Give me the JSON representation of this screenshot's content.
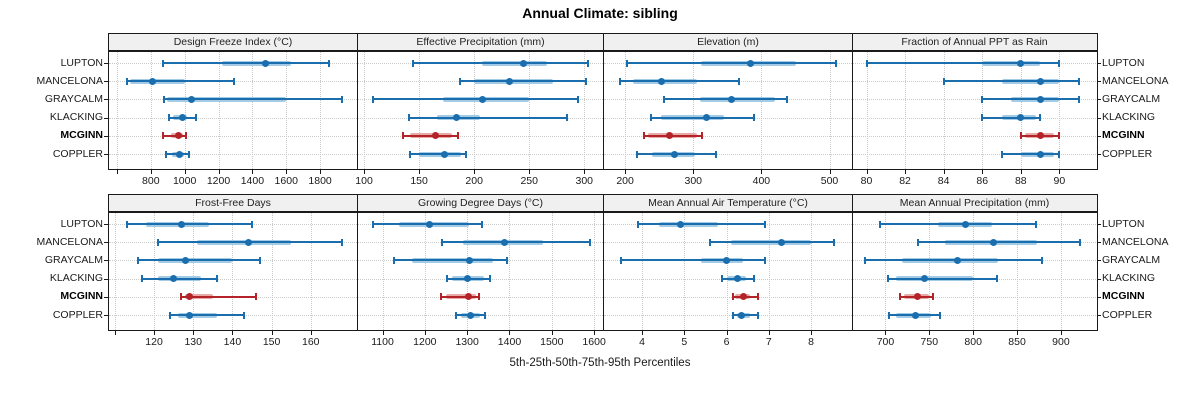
{
  "title": "Annual Climate: sibling",
  "xlabel": "5th-25th-50th-75th-95th Percentiles",
  "sites": [
    "LUPTON",
    "MANCELONA",
    "GRAYCALM",
    "KLACKING",
    "MCGINN",
    "COPPLER"
  ],
  "highlight_site": "MCGINN",
  "colors": {
    "series_blue": "#1b6eae",
    "series_blue_light": "#a3cbe5",
    "highlight_red": "#b32327",
    "highlight_red_light": "#e6aaa8",
    "grid": "#c9c9c9",
    "panel_border": "#1a1a1a",
    "header_bg": "#f0f0f0"
  },
  "chart_data": {
    "type": "scatter",
    "subtype": "percentile-dotplot-trellis",
    "percentile_labels": [
      "5th",
      "25th",
      "50th",
      "75th",
      "95th"
    ],
    "title": "Annual Climate: sibling",
    "xlabel": "5th-25th-50th-75th-95th Percentiles",
    "categories": [
      "LUPTON",
      "MANCELONA",
      "GRAYCALM",
      "KLACKING",
      "MCGINN",
      "COPPLER"
    ],
    "panels": [
      {
        "title": "Design Freeze Index (°C)",
        "row": 0,
        "col": 0,
        "xlim": [
          553,
          2018
        ],
        "ticks": [
          600,
          800,
          1000,
          1200,
          1400,
          1600,
          1800
        ],
        "tick_labels": [
          "",
          "800",
          "1000",
          "1200",
          "1400",
          "1600",
          "1800"
        ],
        "values": {
          "LUPTON": [
            870,
            1220,
            1480,
            1630,
            1850
          ],
          "MANCELONA": [
            660,
            680,
            810,
            1000,
            1290
          ],
          "GRAYCALM": [
            875,
            895,
            1040,
            1600,
            1930
          ],
          "KLACKING": [
            905,
            930,
            985,
            1015,
            1065
          ],
          "MCGINN": [
            870,
            918,
            962,
            988,
            1008
          ],
          "COPPLER": [
            890,
            925,
            970,
            995,
            1025
          ]
        }
      },
      {
        "title": "Effective Precipitation (mm)",
        "row": 0,
        "col": 1,
        "xlim": [
          94.5,
          317
        ],
        "ticks": [
          100,
          150,
          200,
          250,
          300
        ],
        "tick_labels": [
          "100",
          "150",
          "200",
          "250",
          "300"
        ],
        "values": {
          "LUPTON": [
            144,
            207,
            245,
            266,
            303
          ],
          "MANCELONA": [
            187,
            200,
            232,
            272,
            302
          ],
          "GRAYCALM": [
            108,
            172,
            208,
            250,
            294
          ],
          "KLACKING": [
            141,
            166,
            184,
            205,
            284
          ],
          "MCGINN": [
            135,
            142,
            165,
            180,
            185
          ],
          "COPPLER": [
            142,
            150,
            173,
            188,
            193
          ]
        }
      },
      {
        "title": "Elevation (m)",
        "row": 0,
        "col": 2,
        "xlim": [
          169,
          533
        ],
        "ticks": [
          200,
          300,
          400,
          500
        ],
        "tick_labels": [
          "200",
          "300",
          "400",
          "500"
        ],
        "values": {
          "LUPTON": [
            203,
            311,
            384,
            451,
            510
          ],
          "MANCELONA": [
            193,
            212,
            253,
            306,
            367
          ],
          "GRAYCALM": [
            257,
            310,
            356,
            420,
            437
          ],
          "KLACKING": [
            238,
            252,
            320,
            345,
            389
          ],
          "MCGINN": [
            228,
            234,
            265,
            305,
            313
          ],
          "COPPLER": [
            218,
            240,
            273,
            303,
            333
          ]
        }
      },
      {
        "title": "Fraction of Annual PPT as Rain",
        "row": 0,
        "col": 3,
        "xlim": [
          79.3,
          91.9
        ],
        "ticks": [
          80,
          82,
          84,
          86,
          88,
          90
        ],
        "tick_labels": [
          "80",
          "82",
          "84",
          "86",
          "88",
          "90"
        ],
        "values": {
          "LUPTON": [
            80,
            86,
            88,
            89,
            90
          ],
          "MANCELONA": [
            84,
            87,
            89,
            90,
            91
          ],
          "GRAYCALM": [
            86,
            87.5,
            89,
            90,
            91
          ],
          "KLACKING": [
            86,
            87,
            88,
            88.8,
            89
          ],
          "MCGINN": [
            88,
            88.2,
            89,
            89.7,
            90
          ],
          "COPPLER": [
            87,
            88,
            89,
            89.7,
            90
          ]
        }
      },
      {
        "title": "Frost-Free Days",
        "row": 1,
        "col": 0,
        "xlim": [
          108.5,
          171.8
        ],
        "ticks": [
          110,
          120,
          130,
          140,
          150,
          160
        ],
        "tick_labels": [
          "",
          "120",
          "130",
          "140",
          "150",
          "160"
        ],
        "values": {
          "LUPTON": [
            113,
            118,
            127,
            134,
            145
          ],
          "MANCELONA": [
            121,
            131,
            144,
            155,
            168
          ],
          "GRAYCALM": [
            116,
            121,
            128,
            140,
            147
          ],
          "KLACKING": [
            117,
            121,
            125,
            132,
            136
          ],
          "MCGINN": [
            127,
            128,
            129,
            135,
            146
          ],
          "COPPLER": [
            124,
            126,
            129,
            136,
            143
          ]
        }
      },
      {
        "title": "Growing Degree Days (°C)",
        "row": 1,
        "col": 1,
        "xlim": [
          1042,
          1621
        ],
        "ticks": [
          1100,
          1200,
          1300,
          1400,
          1500,
          1600
        ],
        "tick_labels": [
          "1100",
          "1200",
          "1300",
          "1400",
          "1500",
          "1600"
        ],
        "values": {
          "LUPTON": [
            1078,
            1140,
            1210,
            1305,
            1335
          ],
          "MANCELONA": [
            1240,
            1290,
            1388,
            1480,
            1590
          ],
          "GRAYCALM": [
            1127,
            1170,
            1305,
            1360,
            1395
          ],
          "KLACKING": [
            1252,
            1265,
            1300,
            1340,
            1355
          ],
          "MCGINN": [
            1237,
            1250,
            1303,
            1322,
            1328
          ],
          "COPPLER": [
            1273,
            1285,
            1309,
            1330,
            1343
          ]
        }
      },
      {
        "title": "Mean Annual Air Temperature (°C)",
        "row": 1,
        "col": 2,
        "xlim": [
          3.1,
          8.97
        ],
        "ticks": [
          4,
          5,
          6,
          7,
          8
        ],
        "tick_labels": [
          "4",
          "5",
          "6",
          "7",
          "8"
        ],
        "values": {
          "LUPTON": [
            3.9,
            4.4,
            4.9,
            5.8,
            6.9
          ],
          "MANCELONA": [
            5.6,
            6.1,
            7.3,
            8.0,
            8.55
          ],
          "GRAYCALM": [
            3.5,
            5.4,
            6.0,
            6.4,
            6.9
          ],
          "KLACKING": [
            5.9,
            6.0,
            6.25,
            6.45,
            6.65
          ],
          "MCGINN": [
            6.15,
            6.2,
            6.4,
            6.55,
            6.75
          ],
          "COPPLER": [
            6.15,
            6.25,
            6.35,
            6.55,
            6.75
          ]
        }
      },
      {
        "title": "Mean Annual Precipitation (mm)",
        "row": 1,
        "col": 3,
        "xlim": [
          663,
          940
        ],
        "ticks": [
          700,
          750,
          800,
          850,
          900
        ],
        "tick_labels": [
          "700",
          "750",
          "800",
          "850",
          "900"
        ],
        "values": {
          "LUPTON": [
            694,
            760,
            791,
            822,
            872
          ],
          "MANCELONA": [
            737,
            768,
            823,
            873,
            922
          ],
          "GRAYCALM": [
            677,
            719,
            782,
            828,
            879
          ],
          "KLACKING": [
            703,
            712,
            745,
            800,
            827
          ],
          "MCGINN": [
            717,
            721,
            736,
            750,
            754
          ],
          "COPPLER": [
            704,
            712,
            734,
            752,
            762
          ]
        }
      }
    ]
  }
}
